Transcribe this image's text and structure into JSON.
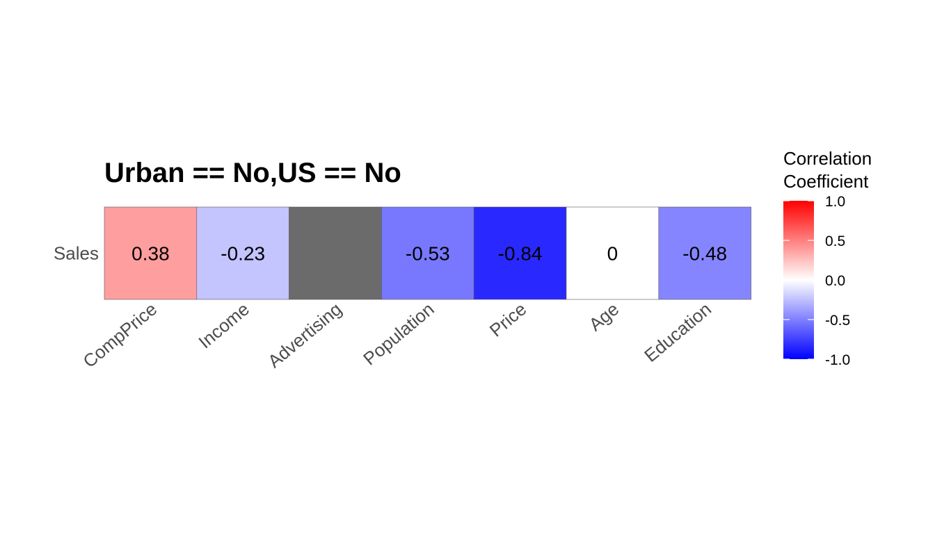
{
  "chart_data": {
    "type": "heatmap",
    "title": "Urban == No,US == No",
    "rows": [
      "Sales"
    ],
    "columns": [
      "CompPrice",
      "Income",
      "Advertising",
      "Population",
      "Price",
      "Age",
      "Education"
    ],
    "values": [
      [
        0.38,
        -0.23,
        null,
        -0.53,
        -0.84,
        0,
        -0.48
      ]
    ],
    "value_labels": [
      [
        "0.38",
        "-0.23",
        "",
        "-0.53",
        "-0.84",
        "0",
        "-0.48"
      ]
    ],
    "na_color": "#6b6b6b",
    "color_scale": {
      "low": "#0000ff",
      "mid": "#ffffff",
      "high": "#ff0000",
      "limits": [
        -1,
        1
      ]
    },
    "legend": {
      "title_lines": [
        "Correlation",
        "Coefficient"
      ],
      "ticks": [
        1.0,
        0.5,
        0.0,
        -0.5,
        -1.0
      ],
      "tick_labels": [
        "1.0",
        "0.5",
        "0.0",
        "-0.5",
        "-1.0"
      ],
      "position": "right"
    }
  }
}
